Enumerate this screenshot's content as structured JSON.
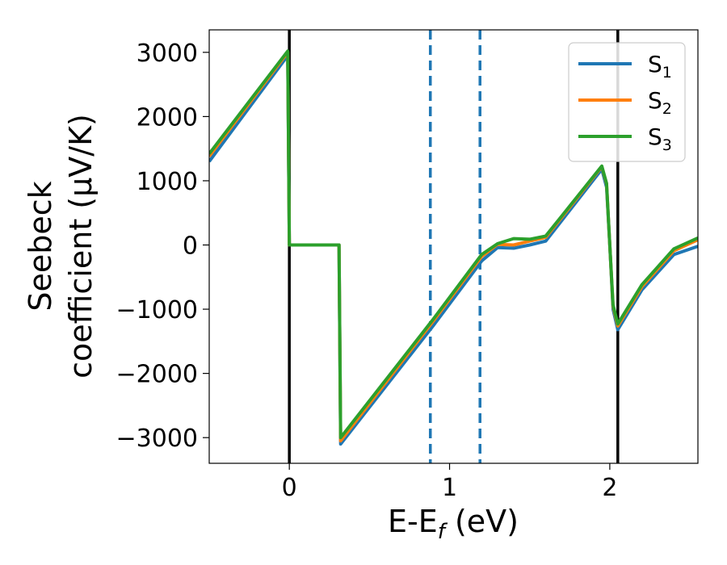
{
  "chart_data": {
    "type": "line",
    "xlabel": "E-E$_f$ (eV)",
    "ylabel_lines": [
      "Seebeck",
      "coefficient  (μV/K)"
    ],
    "xlim": [
      -0.5,
      2.55
    ],
    "ylim": [
      -3400,
      3350
    ],
    "xticks": [
      0,
      1,
      2
    ],
    "xtick_labels": [
      "0",
      "1",
      "2"
    ],
    "yticks": [
      3000,
      2000,
      1000,
      0,
      -1000,
      -2000,
      -3000
    ],
    "ytick_labels": [
      "3000",
      "2000",
      "1000",
      "0",
      "−1000",
      "−2000",
      "−3000"
    ],
    "legend_position": "upper-right",
    "vlines_solid": [
      0,
      2.05
    ],
    "vlines_dashed": [
      0.88,
      1.19
    ],
    "series": [
      {
        "name": "S",
        "subscript": "1",
        "color": "#1f77b4",
        "x": [
          -0.5,
          -0.01,
          -0.0,
          0.31,
          0.32,
          0.9,
          1.2,
          1.3,
          1.4,
          1.5,
          1.6,
          1.7,
          1.95,
          1.98,
          2.0,
          2.02,
          2.05,
          2.2,
          2.4,
          2.55
        ],
        "y": [
          1300,
          2950,
          0,
          0,
          -3100,
          -1250,
          -250,
          -40,
          -50,
          0,
          60,
          380,
          1180,
          900,
          0,
          -1000,
          -1320,
          -700,
          -150,
          -20
        ]
      },
      {
        "name": "S",
        "subscript": "2",
        "color": "#ff7f0e",
        "x": [
          -0.5,
          -0.01,
          -0.0,
          0.31,
          0.32,
          0.9,
          1.2,
          1.3,
          1.4,
          1.5,
          1.6,
          1.7,
          1.95,
          1.98,
          2.0,
          2.02,
          2.05,
          2.2,
          2.4,
          2.55
        ],
        "y": [
          1380,
          3000,
          0,
          0,
          -3050,
          -1180,
          -180,
          10,
          0,
          60,
          120,
          430,
          1220,
          950,
          0,
          -950,
          -1260,
          -650,
          -90,
          80
        ]
      },
      {
        "name": "S",
        "subscript": "3",
        "color": "#2ca02c",
        "x": [
          -0.5,
          -0.01,
          -0.0,
          0.31,
          0.32,
          0.9,
          1.2,
          1.3,
          1.4,
          1.5,
          1.6,
          1.7,
          1.95,
          1.98,
          2.0,
          2.02,
          2.05,
          2.2,
          2.4,
          2.55
        ],
        "y": [
          1420,
          3020,
          0,
          0,
          -3000,
          -1150,
          -150,
          20,
          100,
          90,
          140,
          450,
          1230,
          960,
          0,
          -930,
          -1230,
          -620,
          -60,
          110
        ]
      }
    ]
  }
}
